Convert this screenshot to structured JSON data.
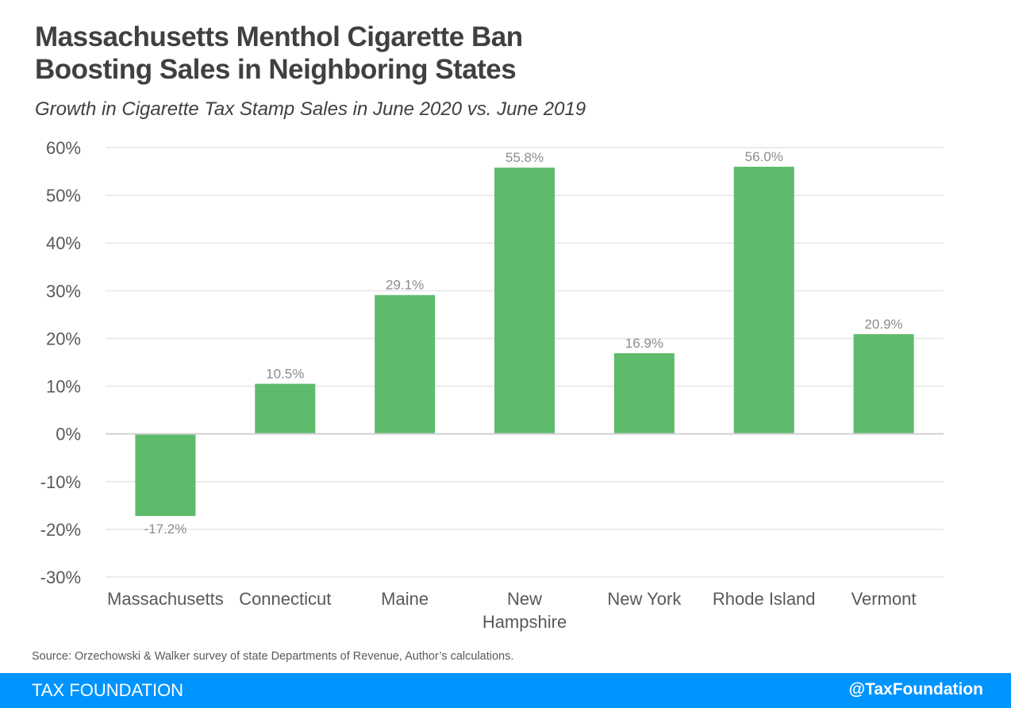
{
  "header": {
    "title_line1": "Massachusetts Menthol Cigarette Ban",
    "title_line2": "Boosting Sales in Neighboring States",
    "subtitle": "Growth in Cigarette Tax Stamp Sales in June 2020 vs. June 2019"
  },
  "footer": {
    "source": "Source: Orzechowski & Walker survey of state Departments of Revenue, Author’s calculations.",
    "brand": "TAX FOUNDATION",
    "handle": "@TaxFoundation",
    "bar_color": "#0094ff"
  },
  "chart_data": {
    "type": "bar",
    "title": "Massachusetts Menthol Cigarette Ban Boosting Sales in Neighboring States",
    "subtitle": "Growth in Cigarette Tax Stamp Sales in June 2020 vs. June 2019",
    "xlabel": "",
    "ylabel": "",
    "categories": [
      [
        "Massachusetts"
      ],
      [
        "Connecticut"
      ],
      [
        "Maine"
      ],
      [
        "New",
        "Hampshire"
      ],
      [
        "New York"
      ],
      [
        "Rhode Island"
      ],
      [
        "Vermont"
      ]
    ],
    "values": [
      -17.2,
      10.5,
      29.1,
      55.8,
      16.9,
      56.0,
      20.9
    ],
    "data_labels": [
      "-17.2%",
      "10.5%",
      "29.1%",
      "55.8%",
      "16.9%",
      "56.0%",
      "20.9%"
    ],
    "ylim": [
      -30,
      60
    ],
    "yticks": [
      60,
      50,
      40,
      30,
      20,
      10,
      0,
      -10,
      -20,
      -30
    ],
    "ytick_labels": [
      "60%",
      "50%",
      "40%",
      "30%",
      "20%",
      "10%",
      "0%",
      "-10%",
      "-20%",
      "-30%"
    ],
    "grid": true,
    "legend": "none",
    "bar_color": "#5dbb6b"
  }
}
